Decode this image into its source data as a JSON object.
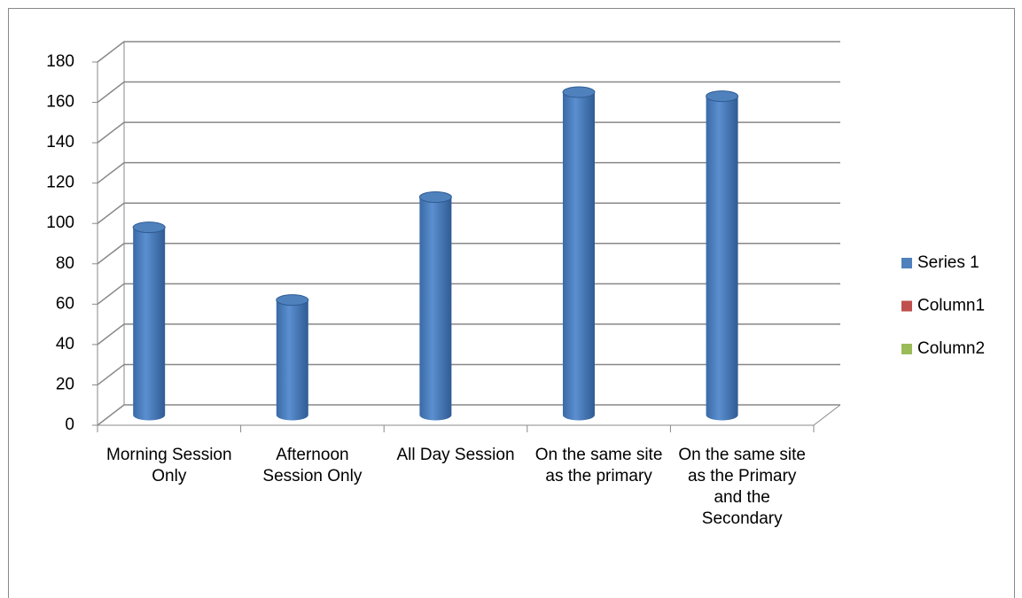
{
  "chart_data": {
    "type": "bar3d",
    "categories": [
      "Morning Session Only",
      "Afternoon Session Only",
      "All Day Session",
      "On the same site as the primary",
      "On the same site as the Primary and the Secondary"
    ],
    "series": [
      {
        "name": "Series 1",
        "color": "#4f81bd",
        "values": [
          93,
          57,
          108,
          160,
          158
        ]
      },
      {
        "name": "Column1",
        "color": "#c0504d",
        "values": [
          null,
          null,
          null,
          null,
          null
        ]
      },
      {
        "name": "Column2",
        "color": "#9bbb59",
        "values": [
          null,
          null,
          null,
          null,
          null
        ]
      }
    ],
    "ylim": [
      0,
      180
    ],
    "yticks": [
      0,
      20,
      40,
      60,
      80,
      100,
      120,
      140,
      160,
      180
    ],
    "grid": true,
    "legend": "right"
  }
}
